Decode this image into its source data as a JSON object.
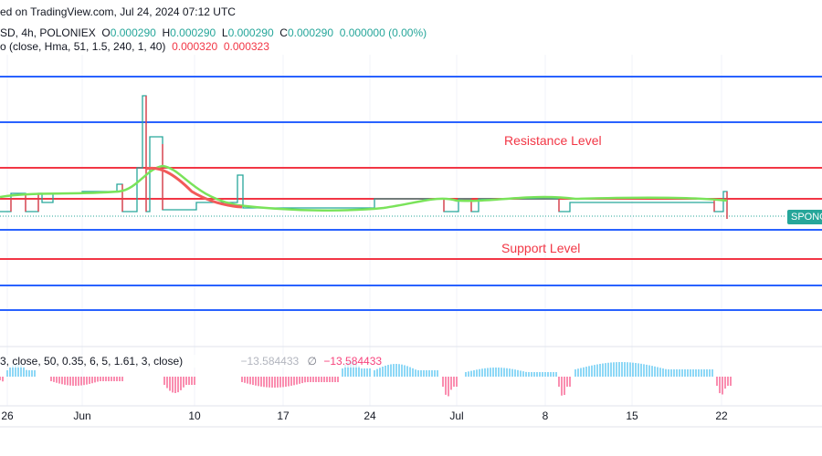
{
  "header": {
    "published": "ed on TradingView.com, Jul 24, 2024 07:12 UTC"
  },
  "legend": {
    "symbol": "SD, 4h, POLONIEX",
    "o_label": "O",
    "o": "0.000290",
    "h_label": "H",
    "h": "0.000290",
    "l_label": "L",
    "l": "0.000290",
    "c_label": "C",
    "c": "0.000290",
    "change": "0.000000 (0.00%)",
    "indicator": "o (close, Hma, 51, 1.5, 240, 1, 40)",
    "ind_v1": "0.000320",
    "ind_v2": "0.000323"
  },
  "oscillator": {
    "params": "3, close, 50, 0.35, 6, 5, 1.61, 3, close)",
    "v1": "−13.584433",
    "sym": "∅",
    "v2": "−13.584433"
  },
  "price_badge": "SPONG",
  "chart_data": {
    "type": "line",
    "annotations": [
      "Resistance Level",
      "Support Level"
    ],
    "x_ticks": [
      "26",
      "Jun",
      "10",
      "17",
      "24",
      "Jul",
      "8",
      "15",
      "22"
    ],
    "colors": {
      "up": "#26a69a",
      "down": "#f23645",
      "resistance": "#f23645",
      "support_lines": "#2962ff",
      "hist_pos": "#42bdf0",
      "hist_neg": "#f7427c"
    }
  }
}
